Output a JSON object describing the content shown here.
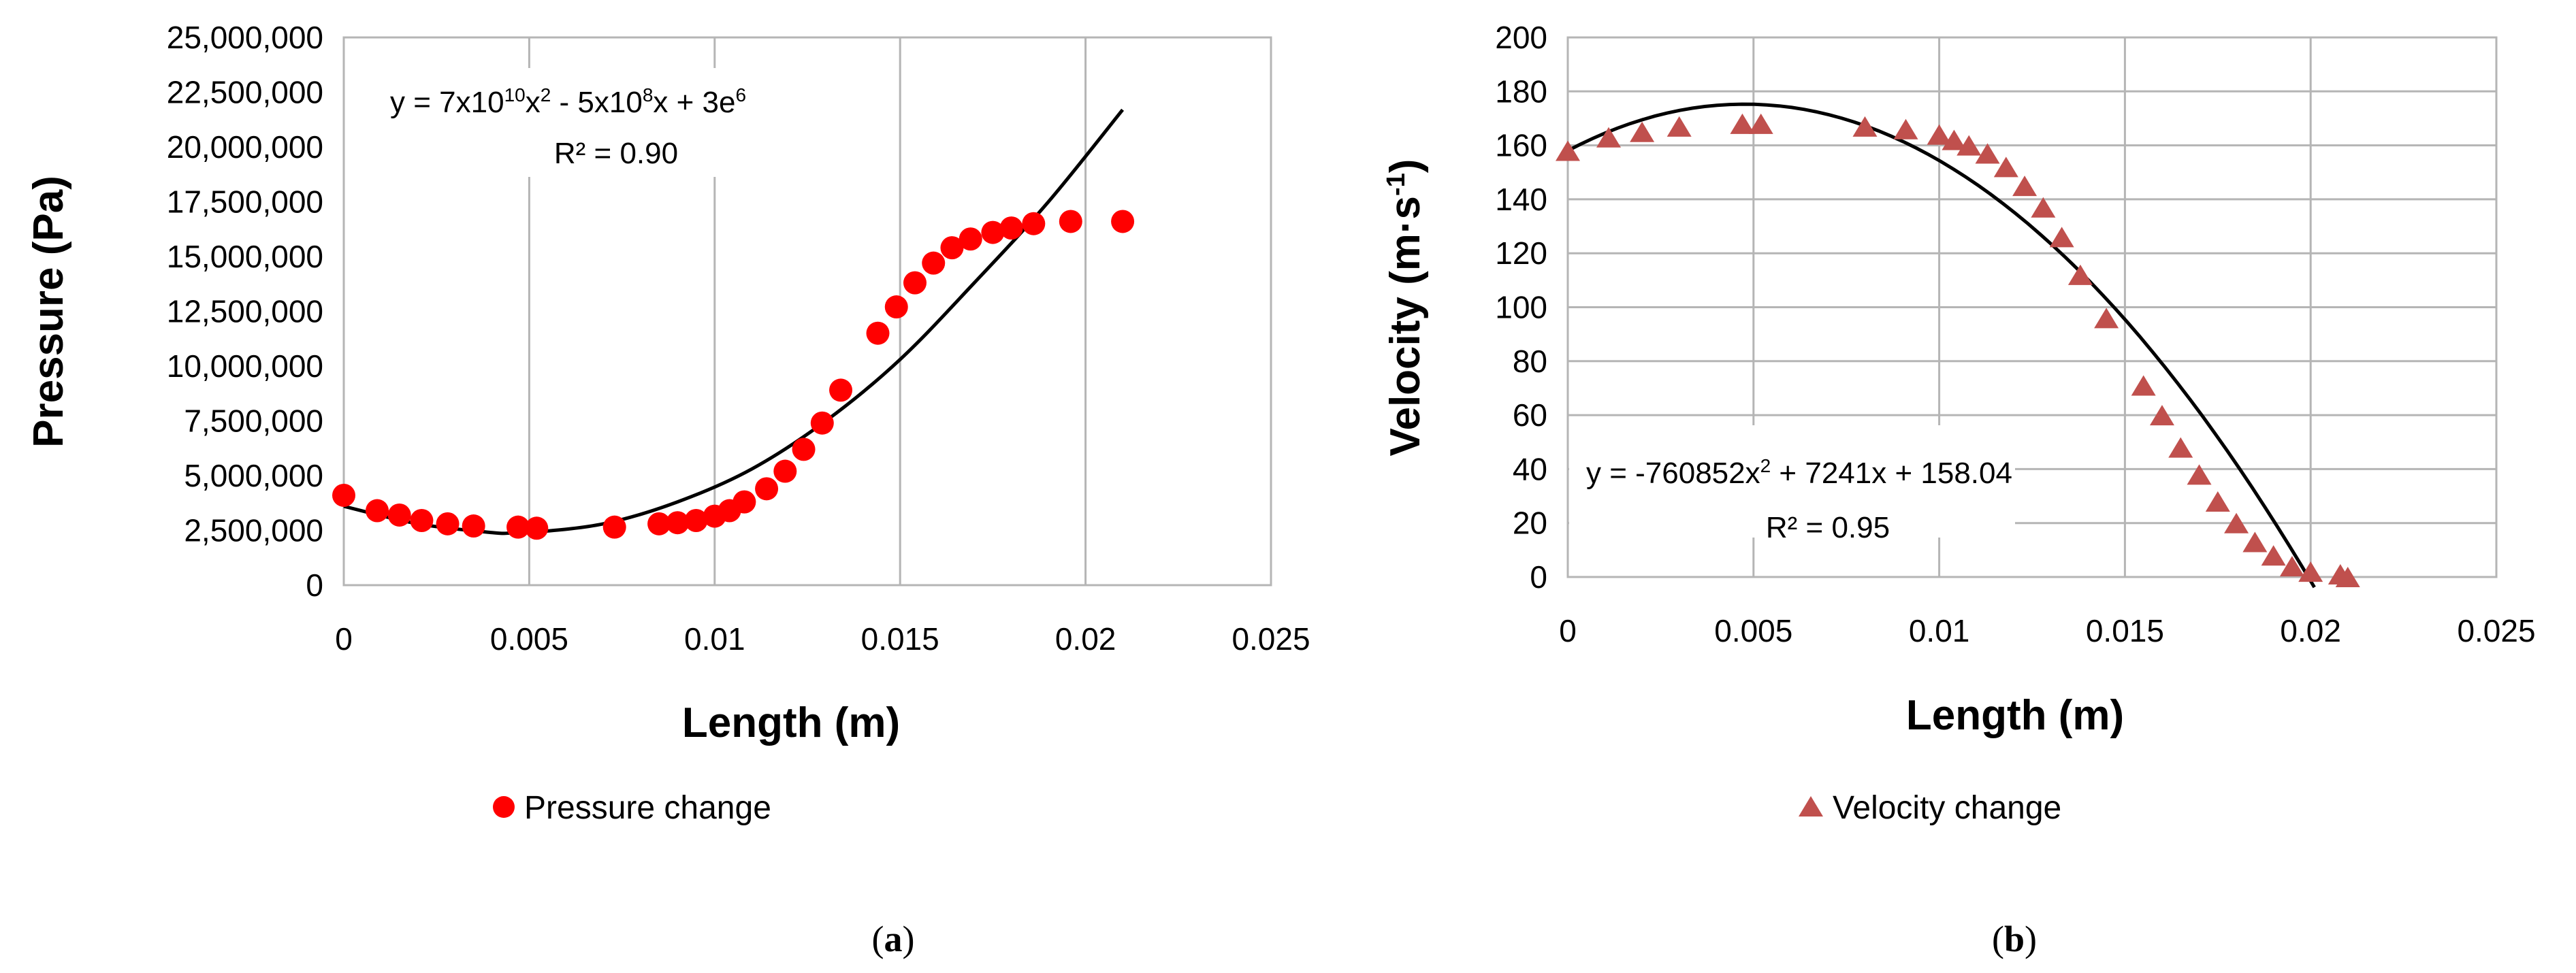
{
  "chart_data": [
    {
      "panel": "a",
      "type": "scatter",
      "xlabel": "Length (m)",
      "ylabel": "Pressure (Pa)",
      "xlim": [
        0,
        0.025
      ],
      "ylim": [
        0,
        25000000
      ],
      "x_ticks": [
        0,
        0.005,
        0.01,
        0.015,
        0.02,
        0.025
      ],
      "x_tick_labels": [
        "0",
        "0.005",
        "0.01",
        "0.015",
        "0.02",
        "0.025"
      ],
      "y_ticks": [
        0,
        2500000,
        5000000,
        7500000,
        10000000,
        12500000,
        15000000,
        17500000,
        20000000,
        22500000,
        25000000
      ],
      "y_tick_labels": [
        "0",
        "2,500,000",
        "5,000,000",
        "7,500,000",
        "10,000,000",
        "12,500,000",
        "15,000,000",
        "17,500,000",
        "20,000,000",
        "22,500,000",
        "25,000,000"
      ],
      "grid": "vertical",
      "legend": "bottom",
      "marker_color": "#ff0000",
      "series": [
        {
          "name": "Pressure change",
          "marker": "circle",
          "x": [
            0,
            0.0009,
            0.0015,
            0.0021,
            0.0028,
            0.0035,
            0.0047,
            0.0052,
            0.0073,
            0.0085,
            0.009,
            0.0095,
            0.01,
            0.0104,
            0.0108,
            0.0114,
            0.0119,
            0.0124,
            0.0129,
            0.0134,
            0.0144,
            0.0149,
            0.0154,
            0.0159,
            0.0164,
            0.0169,
            0.0175,
            0.018,
            0.0186,
            0.0196,
            0.021
          ],
          "y": [
            4100000,
            3400000,
            3200000,
            2950000,
            2800000,
            2700000,
            2650000,
            2600000,
            2650000,
            2800000,
            2850000,
            2950000,
            3150000,
            3400000,
            3800000,
            4400000,
            5200000,
            6200000,
            7400000,
            8900000,
            11500000,
            12700000,
            13800000,
            14700000,
            15400000,
            15800000,
            16100000,
            16300000,
            16500000,
            16600000,
            16600000
          ]
        }
      ],
      "trendline": {
        "type": "polynomial",
        "order": 2,
        "equation_prefix": "y = 7x10",
        "equation_exp1": "10",
        "equation_mid1": "x",
        "equation_exp2": "2",
        "equation_mid2": " - 5x10",
        "equation_exp3": "8",
        "equation_mid3": "x + 3e",
        "equation_exp4": "6",
        "r_squared": "R² = 0.90",
        "x_range": [
          0,
          0.021
        ],
        "curve_x": [
          0,
          0.002,
          0.004,
          0.0045,
          0.005,
          0.007,
          0.009,
          0.011,
          0.013,
          0.015,
          0.017,
          0.019,
          0.021
        ],
        "curve_y": [
          3600000,
          2800000,
          2400000,
          2380000,
          2400000,
          2800000,
          3800000,
          5300000,
          7500000,
          10300000,
          13800000,
          17500000,
          21700000
        ]
      }
    },
    {
      "panel": "b",
      "type": "scatter",
      "xlabel": "Length (m)",
      "ylabel_main": "Velocity (m·s",
      "ylabel_sup": "-1",
      "ylabel_end": ")",
      "xlim": [
        0,
        0.025
      ],
      "ylim": [
        0,
        200
      ],
      "x_ticks": [
        0,
        0.005,
        0.01,
        0.015,
        0.02,
        0.025
      ],
      "x_tick_labels": [
        "0",
        "0.005",
        "0.01",
        "0.015",
        "0.02",
        "0.025"
      ],
      "y_ticks": [
        0,
        20,
        40,
        60,
        80,
        100,
        120,
        140,
        160,
        180,
        200
      ],
      "y_tick_labels": [
        "0",
        "20",
        "40",
        "60",
        "80",
        "100",
        "120",
        "140",
        "160",
        "180",
        "200"
      ],
      "grid": "both",
      "legend": "bottom",
      "marker_color": "#c0504d",
      "series": [
        {
          "name": "Velocity change",
          "marker": "triangle",
          "x": [
            0,
            0.0011,
            0.002,
            0.003,
            0.0047,
            0.0052,
            0.008,
            0.0091,
            0.01,
            0.0104,
            0.0108,
            0.0113,
            0.0118,
            0.0123,
            0.0128,
            0.0133,
            0.0138,
            0.0145,
            0.0155,
            0.016,
            0.0165,
            0.017,
            0.0175,
            0.018,
            0.0185,
            0.019,
            0.0195,
            0.02,
            0.0208,
            0.021
          ],
          "y": [
            158,
            163,
            165,
            167,
            168,
            168,
            167,
            166,
            164,
            162,
            160,
            157,
            152,
            145,
            137,
            126,
            112,
            96,
            71,
            60,
            48,
            38,
            28,
            20,
            13,
            8,
            4,
            2,
            1,
            0
          ]
        }
      ],
      "trendline": {
        "type": "polynomial",
        "order": 2,
        "equation_prefix": "y = -760852x",
        "equation_exp1": "2",
        "equation_rest": " + 7241x + 158.04",
        "r_squared": "R² = 0.95",
        "x_range": [
          0,
          0.0201
        ],
        "a": -760852,
        "b": 7241,
        "c": 158.04
      }
    }
  ],
  "panel_labels": {
    "a": "a",
    "b": "b"
  }
}
